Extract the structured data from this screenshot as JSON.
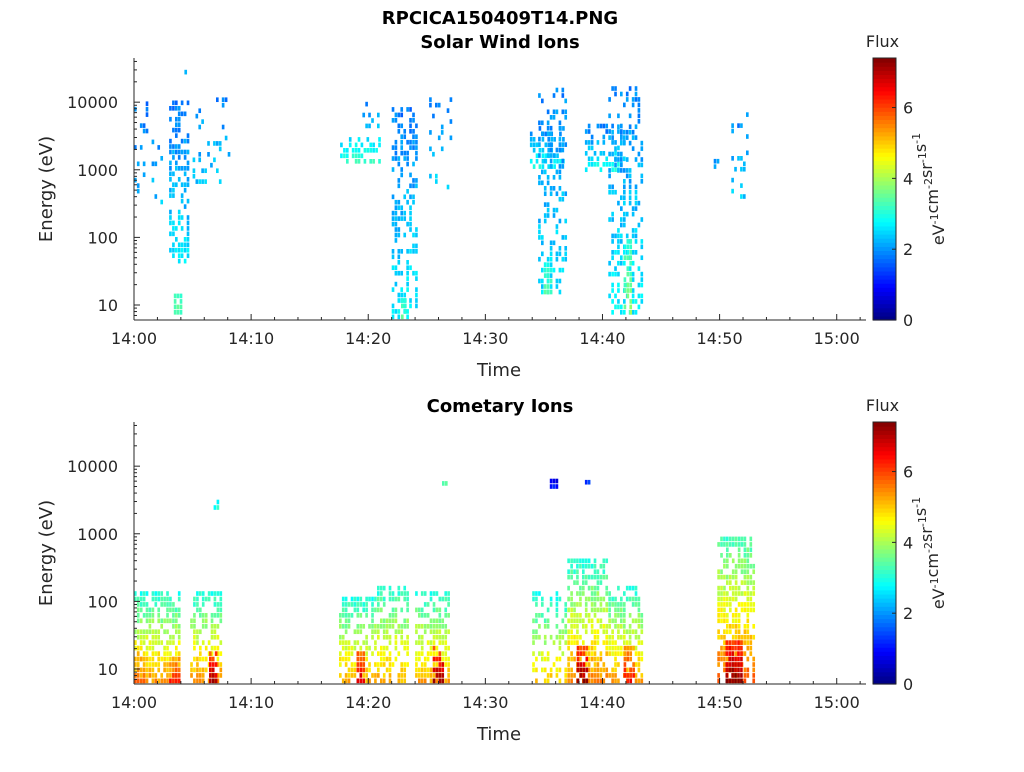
{
  "figure": {
    "title": "RPCICA150409T14.PNG"
  },
  "colorbar": {
    "title": "Flux",
    "unit_parts": [
      "eV",
      "-1",
      "cm",
      "-2",
      "sr",
      "-1",
      "s",
      "-1"
    ],
    "range": [
      0,
      7.4
    ],
    "tick_values": [
      0,
      2,
      4,
      6
    ],
    "tick_labels": [
      "0",
      "2",
      "4",
      "6"
    ],
    "colormap": "jet"
  },
  "chart_data": [
    {
      "type": "heatmap",
      "title": "Solar Wind Ions",
      "xlabel": "Time",
      "ylabel": "Energy (eV)",
      "x_ticks": [
        "14:00",
        "14:10",
        "14:20",
        "14:30",
        "14:40",
        "14:50",
        "15:00"
      ],
      "x_range_minutes": [
        0,
        62.5
      ],
      "y_scale": "log",
      "y_range": [
        6,
        45000
      ],
      "y_ticks": [
        10,
        100,
        1000,
        10000
      ],
      "y_tick_labels": [
        "10",
        "100",
        "1000",
        "10000"
      ],
      "bursts": [
        {
          "t": [
            0.0,
            2.5
          ],
          "e": [
            300,
            9000
          ],
          "flux": [
            1.8,
            2.3
          ],
          "density": 0.12
        },
        {
          "t": [
            3.0,
            4.6
          ],
          "e": [
            40,
            10000
          ],
          "flux": [
            1.8,
            2.6
          ],
          "density": 0.45
        },
        {
          "t": [
            3.4,
            4.0
          ],
          "e": [
            7,
            14
          ],
          "flux": [
            3.1,
            3.4
          ],
          "density": 0.9
        },
        {
          "t": [
            4.3,
            4.5
          ],
          "e": [
            25000,
            35000
          ],
          "flux": [
            1.9,
            2.1
          ],
          "density": 0.9
        },
        {
          "t": [
            5.0,
            8.2
          ],
          "e": [
            600,
            10000
          ],
          "flux": [
            1.9,
            2.4
          ],
          "density": 0.1
        },
        {
          "t": [
            17.6,
            21.0
          ],
          "e": [
            1200,
            3000
          ],
          "flux": [
            2.5,
            3.1
          ],
          "density": 0.55
        },
        {
          "t": [
            19.5,
            21.5
          ],
          "e": [
            4000,
            10000
          ],
          "flux": [
            1.9,
            2.4
          ],
          "density": 0.25
        },
        {
          "t": [
            22.0,
            24.2
          ],
          "e": [
            6,
            8000
          ],
          "flux": [
            1.8,
            2.7
          ],
          "density": 0.45
        },
        {
          "t": [
            22.8,
            23.2
          ],
          "e": [
            6,
            12
          ],
          "flux": [
            3.0,
            3.3
          ],
          "density": 0.9
        },
        {
          "t": [
            25.2,
            27.0
          ],
          "e": [
            500,
            12000
          ],
          "flux": [
            1.9,
            2.4
          ],
          "density": 0.15
        },
        {
          "t": [
            33.8,
            36.8
          ],
          "e": [
            1000,
            4000
          ],
          "flux": [
            1.8,
            2.8
          ],
          "density": 0.5
        },
        {
          "t": [
            34.5,
            37.0
          ],
          "e": [
            14,
            15000
          ],
          "flux": [
            1.9,
            2.6
          ],
          "density": 0.35
        },
        {
          "t": [
            35.0,
            35.6
          ],
          "e": [
            14,
            40
          ],
          "flux": [
            2.9,
            3.4
          ],
          "density": 0.7
        },
        {
          "t": [
            38.5,
            42.0
          ],
          "e": [
            900,
            4000
          ],
          "flux": [
            1.8,
            2.9
          ],
          "density": 0.5
        },
        {
          "t": [
            40.5,
            43.5
          ],
          "e": [
            7,
            15000
          ],
          "flux": [
            1.9,
            2.7
          ],
          "density": 0.4
        },
        {
          "t": [
            41.8,
            42.5
          ],
          "e": [
            7,
            80
          ],
          "flux": [
            3.0,
            3.7
          ],
          "density": 0.75
        },
        {
          "t": [
            51.0,
            52.5
          ],
          "e": [
            300,
            6000
          ],
          "flux": [
            1.9,
            2.4
          ],
          "density": 0.2
        },
        {
          "t": [
            49.5,
            50.0
          ],
          "e": [
            1000,
            1400
          ],
          "flux": [
            2.0,
            2.2
          ],
          "density": 0.8
        }
      ]
    },
    {
      "type": "heatmap",
      "title": "Cometary Ions",
      "xlabel": "Time",
      "ylabel": "Energy (eV)",
      "x_ticks": [
        "14:00",
        "14:10",
        "14:20",
        "14:30",
        "14:40",
        "14:50",
        "15:00"
      ],
      "x_range_minutes": [
        0,
        62.5
      ],
      "y_scale": "log",
      "y_range": [
        6,
        45000
      ],
      "y_ticks": [
        10,
        100,
        1000,
        10000
      ],
      "y_tick_labels": [
        "10",
        "100",
        "1000",
        "10000"
      ],
      "bursts": [
        {
          "t": [
            0.0,
            3.8
          ],
          "e": [
            6,
            120
          ],
          "flux": [
            3.0,
            5.4
          ],
          "density": 0.65
        },
        {
          "t": [
            0.0,
            1.0
          ],
          "e": [
            6,
            25
          ],
          "flux": [
            4.5,
            5.8
          ],
          "density": 0.7
        },
        {
          "t": [
            3.0,
            3.8
          ],
          "e": [
            6,
            15
          ],
          "flux": [
            5.0,
            6.2
          ],
          "density": 0.8
        },
        {
          "t": [
            4.8,
            7.5
          ],
          "e": [
            6,
            120
          ],
          "flux": [
            3.0,
            5.4
          ],
          "density": 0.6
        },
        {
          "t": [
            6.4,
            7.1
          ],
          "e": [
            6,
            18
          ],
          "flux": [
            5.8,
            7.0
          ],
          "density": 0.85
        },
        {
          "t": [
            6.8,
            7.2
          ],
          "e": [
            2200,
            3000
          ],
          "flux": [
            2.7,
            3.0
          ],
          "density": 0.8
        },
        {
          "t": [
            17.5,
            20.3
          ],
          "e": [
            6,
            100
          ],
          "flux": [
            3.0,
            5.2
          ],
          "density": 0.6
        },
        {
          "t": [
            19.0,
            19.6
          ],
          "e": [
            6,
            18
          ],
          "flux": [
            5.5,
            6.7
          ],
          "density": 0.85
        },
        {
          "t": [
            20.5,
            23.5
          ],
          "e": [
            6,
            150
          ],
          "flux": [
            3.0,
            5.2
          ],
          "density": 0.55
        },
        {
          "t": [
            24.0,
            27.0
          ],
          "e": [
            6,
            130
          ],
          "flux": [
            3.0,
            5.3
          ],
          "density": 0.6
        },
        {
          "t": [
            25.5,
            26.3
          ],
          "e": [
            6,
            20
          ],
          "flux": [
            5.8,
            7.2
          ],
          "density": 0.85
        },
        {
          "t": [
            34.0,
            37.0
          ],
          "e": [
            6,
            120
          ],
          "flux": [
            2.8,
            5.0
          ],
          "density": 0.45
        },
        {
          "t": [
            37.0,
            40.5
          ],
          "e": [
            6,
            400
          ],
          "flux": [
            3.0,
            5.5
          ],
          "density": 0.65
        },
        {
          "t": [
            37.8,
            38.8
          ],
          "e": [
            6,
            22
          ],
          "flux": [
            5.8,
            7.3
          ],
          "density": 0.85
        },
        {
          "t": [
            40.5,
            43.5
          ],
          "e": [
            6,
            150
          ],
          "flux": [
            3.0,
            5.3
          ],
          "density": 0.6
        },
        {
          "t": [
            41.8,
            42.6
          ],
          "e": [
            6,
            20
          ],
          "flux": [
            5.2,
            6.4
          ],
          "density": 0.8
        },
        {
          "t": [
            49.8,
            53.0
          ],
          "e": [
            6,
            900
          ],
          "flux": [
            3.2,
            5.8
          ],
          "density": 0.65
        },
        {
          "t": [
            50.5,
            52.0
          ],
          "e": [
            6,
            25
          ],
          "flux": [
            6.0,
            7.4
          ],
          "density": 0.9
        },
        {
          "t": [
            35.5,
            36.2
          ],
          "e": [
            4500,
            6000
          ],
          "flux": [
            0.7,
            1.0
          ],
          "density": 0.8
        },
        {
          "t": [
            38.5,
            39.0
          ],
          "e": [
            5200,
            6000
          ],
          "flux": [
            1.0,
            1.3
          ],
          "density": 0.8
        },
        {
          "t": [
            26.3,
            27.0
          ],
          "e": [
            5000,
            5800
          ],
          "flux": [
            3.2,
            3.5
          ],
          "density": 0.8
        }
      ]
    }
  ]
}
